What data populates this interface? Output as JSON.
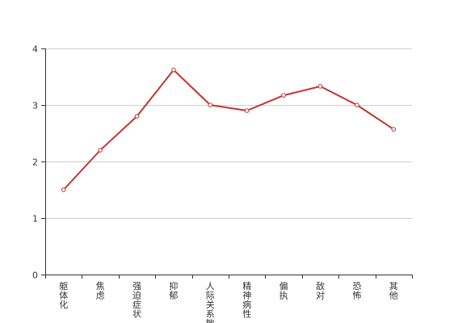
{
  "chart_data": {
    "type": "line",
    "categories": [
      "躯体化",
      "焦虑",
      "强迫症状",
      "抑郁",
      "人际关系敏感",
      "精神病性",
      "偏执",
      "敌对",
      "恐怖",
      "其他"
    ],
    "values": [
      1.5,
      2.2,
      2.8,
      3.62,
      3.0,
      2.9,
      3.17,
      3.33,
      3.0,
      2.57
    ],
    "ylim": [
      0,
      4
    ],
    "y_ticks": [
      "0",
      "1",
      "2",
      "3",
      "4"
    ],
    "grid": true,
    "legend": "none",
    "title": "",
    "xlabel": "",
    "ylabel": "",
    "colors": {
      "line": "#c23531"
    }
  }
}
